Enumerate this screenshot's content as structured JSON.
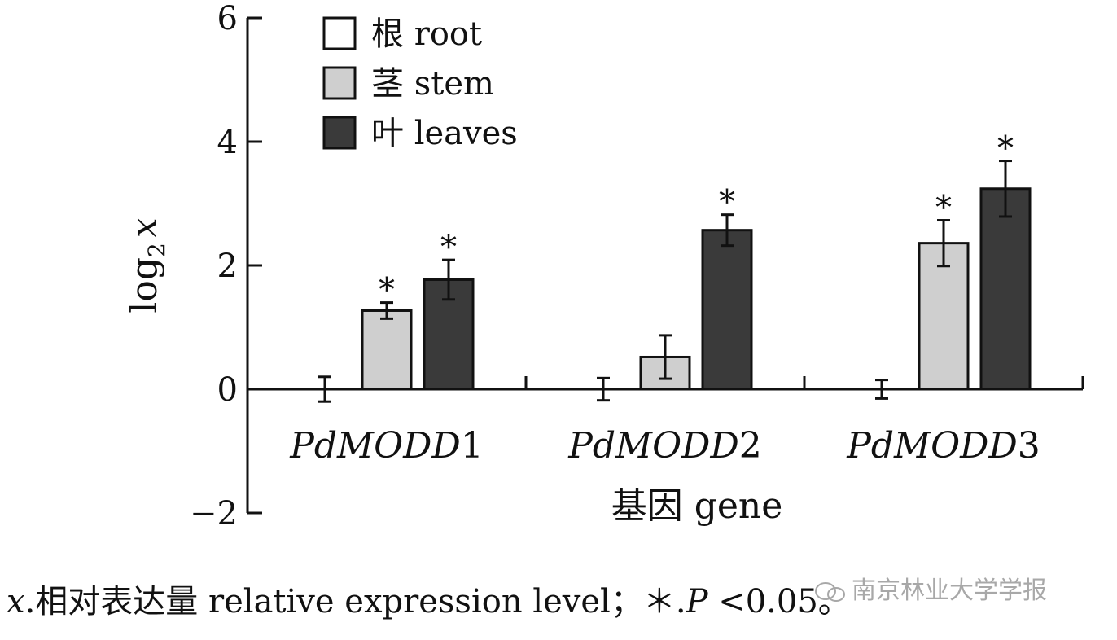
{
  "chart_data": {
    "type": "bar",
    "ylabel": "log",
    "ylabel_sub": "2",
    "ylabel_var": "x",
    "xlabel": "基因 gene",
    "ylim": [
      -2,
      6
    ],
    "yticks": [
      -2,
      0,
      2,
      4,
      6
    ],
    "ytick_labels": [
      "−2",
      "0",
      "2",
      "4",
      "6"
    ],
    "grid": false,
    "legend_position": "top-left",
    "categories": [
      {
        "label": "PdMODD",
        "suffix": "1"
      },
      {
        "label": "PdMODD",
        "suffix": "2"
      },
      {
        "label": "PdMODD",
        "suffix": "3"
      }
    ],
    "series": [
      {
        "name": "根 root",
        "fill": "#ffffff",
        "values": [
          0.0,
          0.0,
          0.0
        ],
        "errors": [
          0.2,
          0.18,
          0.15
        ],
        "significant": [
          false,
          false,
          false
        ]
      },
      {
        "name": "茎 stem",
        "fill": "#cfcfcf",
        "values": [
          1.27,
          0.52,
          2.36
        ],
        "errors": [
          0.13,
          0.35,
          0.37
        ],
        "significant": [
          true,
          false,
          true
        ]
      },
      {
        "name": "叶 leaves",
        "fill": "#3a3a3a",
        "values": [
          1.77,
          2.57,
          3.24
        ],
        "errors": [
          0.32,
          0.25,
          0.45
        ],
        "significant": [
          true,
          true,
          true
        ]
      }
    ],
    "significance_marker": "*"
  },
  "caption": {
    "var": "x",
    "text1": ".相对表达量 relative expression level；",
    "star": "＊",
    "text2": ".",
    "p": "P",
    "text3": " <0.05。"
  },
  "watermark": {
    "text": "南京林业大学学报"
  },
  "colors": {
    "axis": "#111111",
    "bar_stroke": "#111111"
  }
}
